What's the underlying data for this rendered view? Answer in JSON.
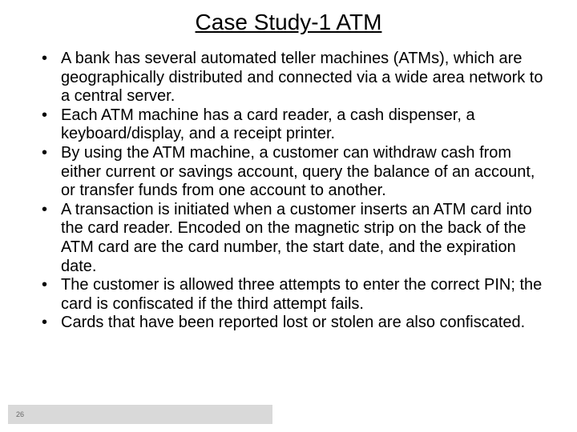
{
  "slide": {
    "title": "Case Study-1 ATM",
    "title_fontsize": 28,
    "title_color": "#000000",
    "background_color": "#ffffff",
    "bullets": [
      "A bank has several automated teller machines (ATMs), which are geographically distributed and connected via a wide area network to a central server.",
      "Each ATM machine has a card reader, a cash dispenser, a keyboard/display, and a receipt printer.",
      "By using the ATM machine, a customer can withdraw cash from either current or savings account, query the balance of an account, or transfer funds from one account to another.",
      "A transaction is initiated when a customer inserts an ATM card into the card reader. Encoded on the magnetic strip on the back of the ATM card are the card number, the start date, and the expiration date.",
      "The customer is allowed three attempts to enter the correct PIN; the card is confiscated if the third attempt fails.",
      "Cards that have been reported lost or stolen are also confiscated."
    ],
    "bullet_fontsize": 20,
    "bullet_color": "#000000",
    "page_number": "26",
    "page_number_bg": "#d9d9d9",
    "page_number_color": "#666666"
  }
}
